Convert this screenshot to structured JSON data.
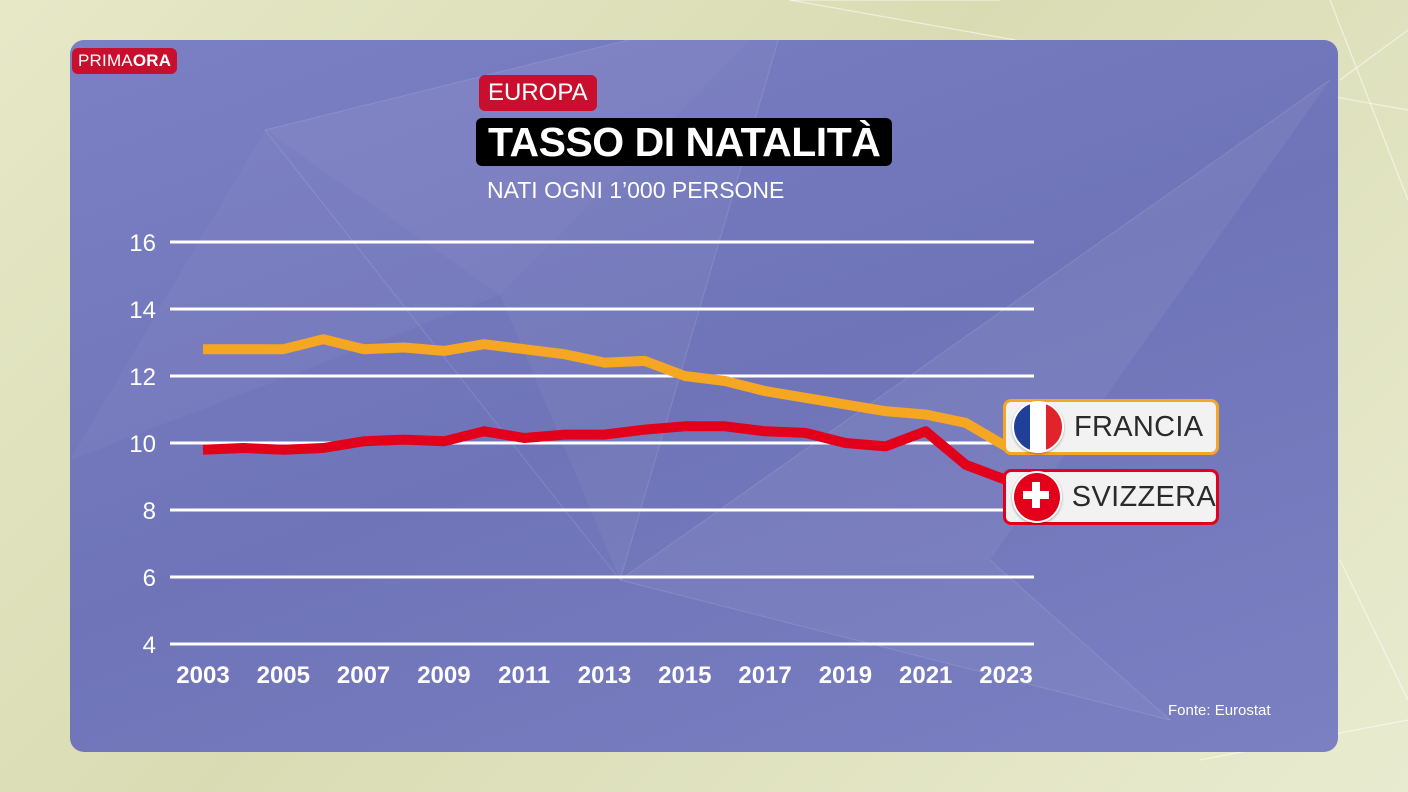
{
  "brand": {
    "prefix": "PRIMA",
    "suffix": "ORA"
  },
  "region": "EUROPA",
  "title": "TASSO DI NATALITÀ",
  "subtitle": "NATI OGNI 1’000 PERSONE",
  "source": "Fonte: Eurostat",
  "colors": {
    "francia": "#f5a623",
    "svizzera": "#e3001b",
    "brand_red": "#c8102e"
  },
  "chart_data": {
    "type": "line",
    "title": "TASSO DI NATALITÀ",
    "subtitle": "NATI OGNI 1’000 PERSONE",
    "xlabel": "",
    "ylabel": "",
    "ylim": [
      4,
      16
    ],
    "yticks": [
      "4",
      "6",
      "8",
      "10",
      "12",
      "14",
      "16"
    ],
    "xticks": [
      "2003",
      "2005",
      "2007",
      "2009",
      "2011",
      "2013",
      "2015",
      "2017",
      "2019",
      "2021",
      "2023"
    ],
    "grid": true,
    "legend": "right",
    "x": [
      2003,
      2004,
      2005,
      2006,
      2007,
      2008,
      2009,
      2010,
      2011,
      2012,
      2013,
      2014,
      2015,
      2016,
      2017,
      2018,
      2019,
      2020,
      2021,
      2022,
      2023
    ],
    "series": [
      {
        "name": "FRANCIA",
        "color": "#f5a623",
        "flag": "france-flag-icon",
        "values": [
          12.8,
          12.8,
          12.8,
          13.1,
          12.8,
          12.85,
          12.75,
          12.95,
          12.8,
          12.65,
          12.4,
          12.45,
          12.0,
          11.85,
          11.55,
          11.35,
          11.15,
          10.95,
          10.85,
          10.6,
          9.9
        ]
      },
      {
        "name": "SVIZZERA",
        "color": "#e3001b",
        "flag": "switzerland-flag-icon",
        "values": [
          9.8,
          9.85,
          9.8,
          9.85,
          10.05,
          10.1,
          10.05,
          10.35,
          10.15,
          10.25,
          10.25,
          10.4,
          10.5,
          10.5,
          10.35,
          10.3,
          10.0,
          9.9,
          10.35,
          9.35,
          8.9
        ]
      }
    ]
  }
}
